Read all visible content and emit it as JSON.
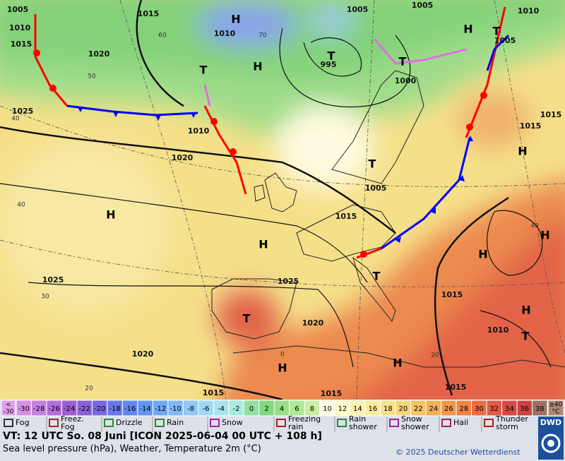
{
  "map": {
    "pressure_labels": [
      "1005",
      "1010",
      "1015",
      "1020",
      "1025",
      "1015",
      "1010",
      "995",
      "1005",
      "1005",
      "1010",
      "1005",
      "1000",
      "1015",
      "1015",
      "1010",
      "1020",
      "1005",
      "1015",
      "1025",
      "1025",
      "1020",
      "1015",
      "1010",
      "1020",
      "1015",
      "1015",
      "1015"
    ],
    "temperature_labels": [
      "60",
      "70",
      "50",
      "40",
      "40",
      "30",
      "20",
      "40",
      "20",
      "0"
    ],
    "pressure_centers": [
      "H",
      "H",
      "T",
      "T",
      "H",
      "T",
      "T",
      "H",
      "T",
      "H",
      "H",
      "H",
      "H",
      "T",
      "T",
      "H",
      "T",
      "H",
      "H"
    ]
  },
  "scale": {
    "low_label": [
      "<",
      "-30"
    ],
    "cells": [
      {
        "label": "-30",
        "color": "#d88ee8"
      },
      {
        "label": "-28",
        "color": "#c77ee0"
      },
      {
        "label": "-26",
        "color": "#b46ed8"
      },
      {
        "label": "-24",
        "color": "#a05ed0"
      },
      {
        "label": "-22",
        "color": "#8c60d8"
      },
      {
        "label": "-20",
        "color": "#7868e0"
      },
      {
        "label": "-18",
        "color": "#6878e8"
      },
      {
        "label": "-16",
        "color": "#6088f0"
      },
      {
        "label": "-14",
        "color": "#6098f0"
      },
      {
        "label": "-12",
        "color": "#70a8f4"
      },
      {
        "label": "-10",
        "color": "#80b8f8"
      },
      {
        "label": "-8",
        "color": "#90c8f8"
      },
      {
        "label": "-6",
        "color": "#a0d8f8"
      },
      {
        "label": "-4",
        "color": "#a8e4f0"
      },
      {
        "label": "-2",
        "color": "#a8ece0"
      },
      {
        "label": "0",
        "color": "#90e0a0"
      },
      {
        "label": "2",
        "color": "#80d880"
      },
      {
        "label": "4",
        "color": "#98e088"
      },
      {
        "label": "6",
        "color": "#b0e890"
      },
      {
        "label": "8",
        "color": "#c8f0a0"
      },
      {
        "label": "10",
        "color": "#ffffe0"
      },
      {
        "label": "12",
        "color": "#fdfbc8"
      },
      {
        "label": "14",
        "color": "#fbf3b0"
      },
      {
        "label": "16",
        "color": "#f9eb9c"
      },
      {
        "label": "18",
        "color": "#f7e18a"
      },
      {
        "label": "20",
        "color": "#f5d578"
      },
      {
        "label": "22",
        "color": "#f3c468"
      },
      {
        "label": "24",
        "color": "#f1b05a"
      },
      {
        "label": "26",
        "color": "#ef9a50"
      },
      {
        "label": "28",
        "color": "#ec8448"
      },
      {
        "label": "30",
        "color": "#e86c44"
      },
      {
        "label": "32",
        "color": "#e05a44"
      },
      {
        "label": "34",
        "color": "#d64a44"
      },
      {
        "label": "36",
        "color": "#c84440"
      },
      {
        "label": "38",
        "color": "#a07060"
      }
    ],
    "high_label": [
      "≥40",
      "°C"
    ]
  },
  "legend": [
    [
      "Fog"
    ],
    [
      "Freez.",
      "Fog"
    ],
    [
      "Drizzle"
    ],
    [
      "Rain"
    ],
    [
      "Snow"
    ],
    [
      "Freezing",
      "rain"
    ],
    [
      "Rain",
      "shower"
    ],
    [
      "Snow",
      "shower"
    ],
    [
      "Hail"
    ],
    [
      "Thunder",
      "storm"
    ]
  ],
  "info": {
    "valid_time": "VT: 12 UTC So.  08 Juni [ICON 2025-06-04  00 UTC + 108 h]",
    "description": "Sea level pressure (hPa), Weather, Temperature 2m (°C)",
    "copyright": "© 2025 Deutscher Wetterdienst",
    "logo": "DWD"
  }
}
